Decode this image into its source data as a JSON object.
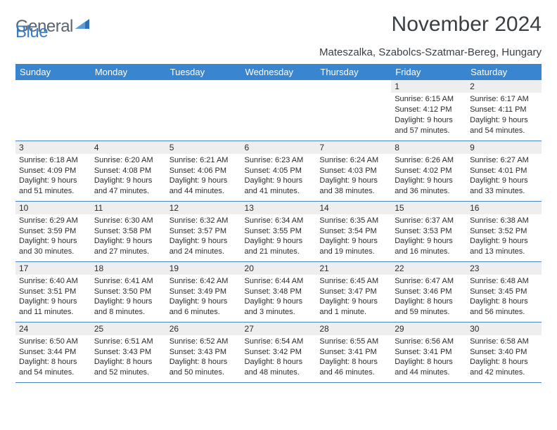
{
  "brand": {
    "word1": "General",
    "word2": "Blue"
  },
  "title": "November 2024",
  "subtitle": "Mateszalka, Szabolcs-Szatmar-Bereg, Hungary",
  "colors": {
    "header_bg": "#3a85d0",
    "header_text": "#ffffff",
    "daybar_bg": "#eeeeee",
    "border": "#4a87c0",
    "logo_gray": "#5a6570",
    "logo_blue": "#3a7bc8",
    "title_color": "#3a3f44",
    "body_text": "#2b2b2b"
  },
  "dayHeaders": [
    "Sunday",
    "Monday",
    "Tuesday",
    "Wednesday",
    "Thursday",
    "Friday",
    "Saturday"
  ],
  "weeks": [
    [
      {
        "n": "",
        "sr": "",
        "ss": "",
        "dl": ""
      },
      {
        "n": "",
        "sr": "",
        "ss": "",
        "dl": ""
      },
      {
        "n": "",
        "sr": "",
        "ss": "",
        "dl": ""
      },
      {
        "n": "",
        "sr": "",
        "ss": "",
        "dl": ""
      },
      {
        "n": "",
        "sr": "",
        "ss": "",
        "dl": ""
      },
      {
        "n": "1",
        "sr": "Sunrise: 6:15 AM",
        "ss": "Sunset: 4:12 PM",
        "dl": "Daylight: 9 hours and 57 minutes."
      },
      {
        "n": "2",
        "sr": "Sunrise: 6:17 AM",
        "ss": "Sunset: 4:11 PM",
        "dl": "Daylight: 9 hours and 54 minutes."
      }
    ],
    [
      {
        "n": "3",
        "sr": "Sunrise: 6:18 AM",
        "ss": "Sunset: 4:09 PM",
        "dl": "Daylight: 9 hours and 51 minutes."
      },
      {
        "n": "4",
        "sr": "Sunrise: 6:20 AM",
        "ss": "Sunset: 4:08 PM",
        "dl": "Daylight: 9 hours and 47 minutes."
      },
      {
        "n": "5",
        "sr": "Sunrise: 6:21 AM",
        "ss": "Sunset: 4:06 PM",
        "dl": "Daylight: 9 hours and 44 minutes."
      },
      {
        "n": "6",
        "sr": "Sunrise: 6:23 AM",
        "ss": "Sunset: 4:05 PM",
        "dl": "Daylight: 9 hours and 41 minutes."
      },
      {
        "n": "7",
        "sr": "Sunrise: 6:24 AM",
        "ss": "Sunset: 4:03 PM",
        "dl": "Daylight: 9 hours and 38 minutes."
      },
      {
        "n": "8",
        "sr": "Sunrise: 6:26 AM",
        "ss": "Sunset: 4:02 PM",
        "dl": "Daylight: 9 hours and 36 minutes."
      },
      {
        "n": "9",
        "sr": "Sunrise: 6:27 AM",
        "ss": "Sunset: 4:01 PM",
        "dl": "Daylight: 9 hours and 33 minutes."
      }
    ],
    [
      {
        "n": "10",
        "sr": "Sunrise: 6:29 AM",
        "ss": "Sunset: 3:59 PM",
        "dl": "Daylight: 9 hours and 30 minutes."
      },
      {
        "n": "11",
        "sr": "Sunrise: 6:30 AM",
        "ss": "Sunset: 3:58 PM",
        "dl": "Daylight: 9 hours and 27 minutes."
      },
      {
        "n": "12",
        "sr": "Sunrise: 6:32 AM",
        "ss": "Sunset: 3:57 PM",
        "dl": "Daylight: 9 hours and 24 minutes."
      },
      {
        "n": "13",
        "sr": "Sunrise: 6:34 AM",
        "ss": "Sunset: 3:55 PM",
        "dl": "Daylight: 9 hours and 21 minutes."
      },
      {
        "n": "14",
        "sr": "Sunrise: 6:35 AM",
        "ss": "Sunset: 3:54 PM",
        "dl": "Daylight: 9 hours and 19 minutes."
      },
      {
        "n": "15",
        "sr": "Sunrise: 6:37 AM",
        "ss": "Sunset: 3:53 PM",
        "dl": "Daylight: 9 hours and 16 minutes."
      },
      {
        "n": "16",
        "sr": "Sunrise: 6:38 AM",
        "ss": "Sunset: 3:52 PM",
        "dl": "Daylight: 9 hours and 13 minutes."
      }
    ],
    [
      {
        "n": "17",
        "sr": "Sunrise: 6:40 AM",
        "ss": "Sunset: 3:51 PM",
        "dl": "Daylight: 9 hours and 11 minutes."
      },
      {
        "n": "18",
        "sr": "Sunrise: 6:41 AM",
        "ss": "Sunset: 3:50 PM",
        "dl": "Daylight: 9 hours and 8 minutes."
      },
      {
        "n": "19",
        "sr": "Sunrise: 6:42 AM",
        "ss": "Sunset: 3:49 PM",
        "dl": "Daylight: 9 hours and 6 minutes."
      },
      {
        "n": "20",
        "sr": "Sunrise: 6:44 AM",
        "ss": "Sunset: 3:48 PM",
        "dl": "Daylight: 9 hours and 3 minutes."
      },
      {
        "n": "21",
        "sr": "Sunrise: 6:45 AM",
        "ss": "Sunset: 3:47 PM",
        "dl": "Daylight: 9 hours and 1 minute."
      },
      {
        "n": "22",
        "sr": "Sunrise: 6:47 AM",
        "ss": "Sunset: 3:46 PM",
        "dl": "Daylight: 8 hours and 59 minutes."
      },
      {
        "n": "23",
        "sr": "Sunrise: 6:48 AM",
        "ss": "Sunset: 3:45 PM",
        "dl": "Daylight: 8 hours and 56 minutes."
      }
    ],
    [
      {
        "n": "24",
        "sr": "Sunrise: 6:50 AM",
        "ss": "Sunset: 3:44 PM",
        "dl": "Daylight: 8 hours and 54 minutes."
      },
      {
        "n": "25",
        "sr": "Sunrise: 6:51 AM",
        "ss": "Sunset: 3:43 PM",
        "dl": "Daylight: 8 hours and 52 minutes."
      },
      {
        "n": "26",
        "sr": "Sunrise: 6:52 AM",
        "ss": "Sunset: 3:43 PM",
        "dl": "Daylight: 8 hours and 50 minutes."
      },
      {
        "n": "27",
        "sr": "Sunrise: 6:54 AM",
        "ss": "Sunset: 3:42 PM",
        "dl": "Daylight: 8 hours and 48 minutes."
      },
      {
        "n": "28",
        "sr": "Sunrise: 6:55 AM",
        "ss": "Sunset: 3:41 PM",
        "dl": "Daylight: 8 hours and 46 minutes."
      },
      {
        "n": "29",
        "sr": "Sunrise: 6:56 AM",
        "ss": "Sunset: 3:41 PM",
        "dl": "Daylight: 8 hours and 44 minutes."
      },
      {
        "n": "30",
        "sr": "Sunrise: 6:58 AM",
        "ss": "Sunset: 3:40 PM",
        "dl": "Daylight: 8 hours and 42 minutes."
      }
    ]
  ]
}
